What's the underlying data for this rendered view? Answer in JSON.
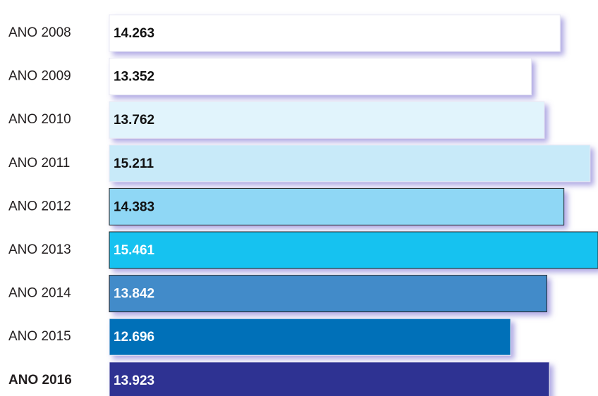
{
  "chart_data": {
    "type": "barh",
    "categories": [
      "ANO 2008",
      "ANO 2009",
      "ANO 2010",
      "ANO 2011",
      "ANO 2012",
      "ANO 2013",
      "ANO 2014",
      "ANO 2015",
      "ANO 2016"
    ],
    "values": [
      14263,
      13352,
      13762,
      15211,
      14383,
      15461,
      13842,
      12696,
      13923
    ],
    "value_labels": [
      "14.263",
      "13.352",
      "13.762",
      "15.211",
      "14.383",
      "15.461",
      "13.842",
      "12.696",
      "13.923"
    ],
    "colors": [
      "#ffffff",
      "#ffffff",
      "#e1f4fc",
      "#c8eaf9",
      "#8fd7f5",
      "#14c2f0",
      "#428bc9",
      "#0070b8",
      "#2e3192"
    ]
  }
}
